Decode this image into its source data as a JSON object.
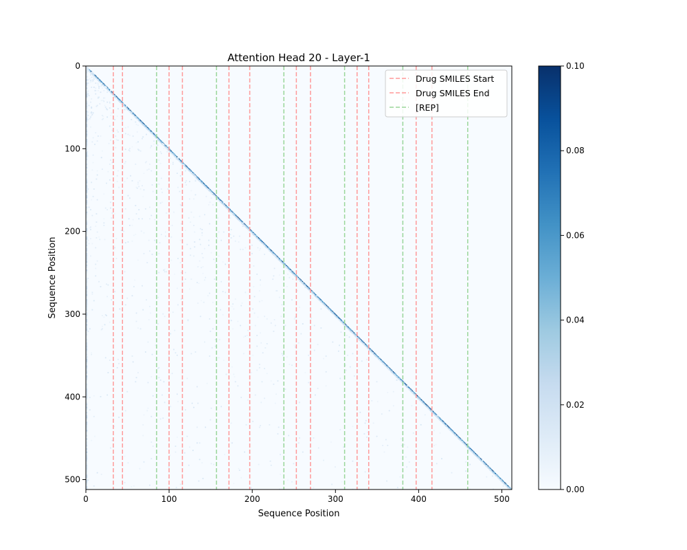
{
  "chart_data": {
    "type": "heatmap",
    "title": "Attention Head 20 - Layer-1",
    "xlabel": "Sequence Position",
    "ylabel": "Sequence Position",
    "seq_len": 512,
    "xlim": [
      0,
      512
    ],
    "ylim": [
      512,
      0
    ],
    "x_ticks": [
      0,
      100,
      200,
      300,
      400,
      500
    ],
    "y_ticks": [
      0,
      100,
      200,
      300,
      400,
      500
    ],
    "colormap": "Blues",
    "colorbar": {
      "vmin": 0.0,
      "vmax": 0.1,
      "ticks": [
        0.0,
        0.02,
        0.04,
        0.06,
        0.08,
        0.1
      ],
      "tick_labels": [
        "0.00",
        "0.02",
        "0.04",
        "0.06",
        "0.08",
        "0.10"
      ]
    },
    "markers": {
      "drug_smiles_start": [
        33,
        100,
        172,
        253,
        326,
        397
      ],
      "drug_smiles_end": [
        44,
        116,
        197,
        270,
        340,
        416
      ],
      "rep": [
        85,
        157,
        238,
        311,
        381,
        459
      ]
    },
    "legend": {
      "placement": "top-right",
      "entries": [
        {
          "key": "drug_smiles_start",
          "label": "Drug SMILES Start",
          "color": "#ff9999"
        },
        {
          "key": "drug_smiles_end",
          "label": "Drug SMILES End",
          "color": "#ff9999"
        },
        {
          "key": "rep",
          "label": "[REP]",
          "color": "#99d699"
        }
      ]
    },
    "pattern": "strong diagonal (self-attention), weak background",
    "background_color": "#f7fbff",
    "diagonal_color": "#08306b"
  }
}
